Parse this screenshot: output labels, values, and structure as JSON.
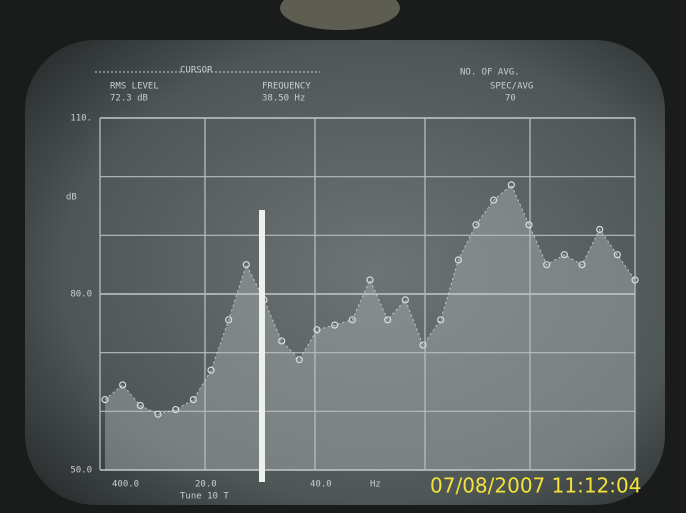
{
  "chart_data": {
    "type": "area",
    "header": {
      "cursor": "CURSOR",
      "rms_level": "RMS LEVEL",
      "rms_value": "72.3 dB",
      "frequency": "FREQUENCY",
      "frequency_value": "38.50 Hz",
      "avg": "NO. OF AVG.",
      "avg_mode": "SPEC/AVG",
      "avg_value": "70"
    },
    "ylabel": "dB",
    "values": [
      62,
      64.5,
      61,
      59.5,
      60.3,
      62,
      67,
      75.6,
      85,
      79,
      72,
      68.8,
      73.9,
      74.7,
      75.6,
      82.4,
      75.6,
      79,
      71.3,
      75.6,
      85.8,
      91.8,
      96,
      98.6,
      91.8,
      85,
      86.7,
      85,
      91,
      86.7,
      82.4
    ],
    "color": "#d8dcdc",
    "ylim": [
      50,
      110
    ],
    "yticks": [
      {
        "value": 50,
        "label": "50.0"
      },
      {
        "value": 80,
        "label": "80.0"
      },
      {
        "value": 110,
        "label": "110."
      }
    ],
    "ygrid_minor": [
      60,
      70,
      90,
      100
    ],
    "grid": true,
    "footer": [
      "400.0",
      "20.0",
      "40.0",
      "Hz",
      "Tune 10 T"
    ],
    "timestamp": "07/08/2007 11:12:04"
  }
}
